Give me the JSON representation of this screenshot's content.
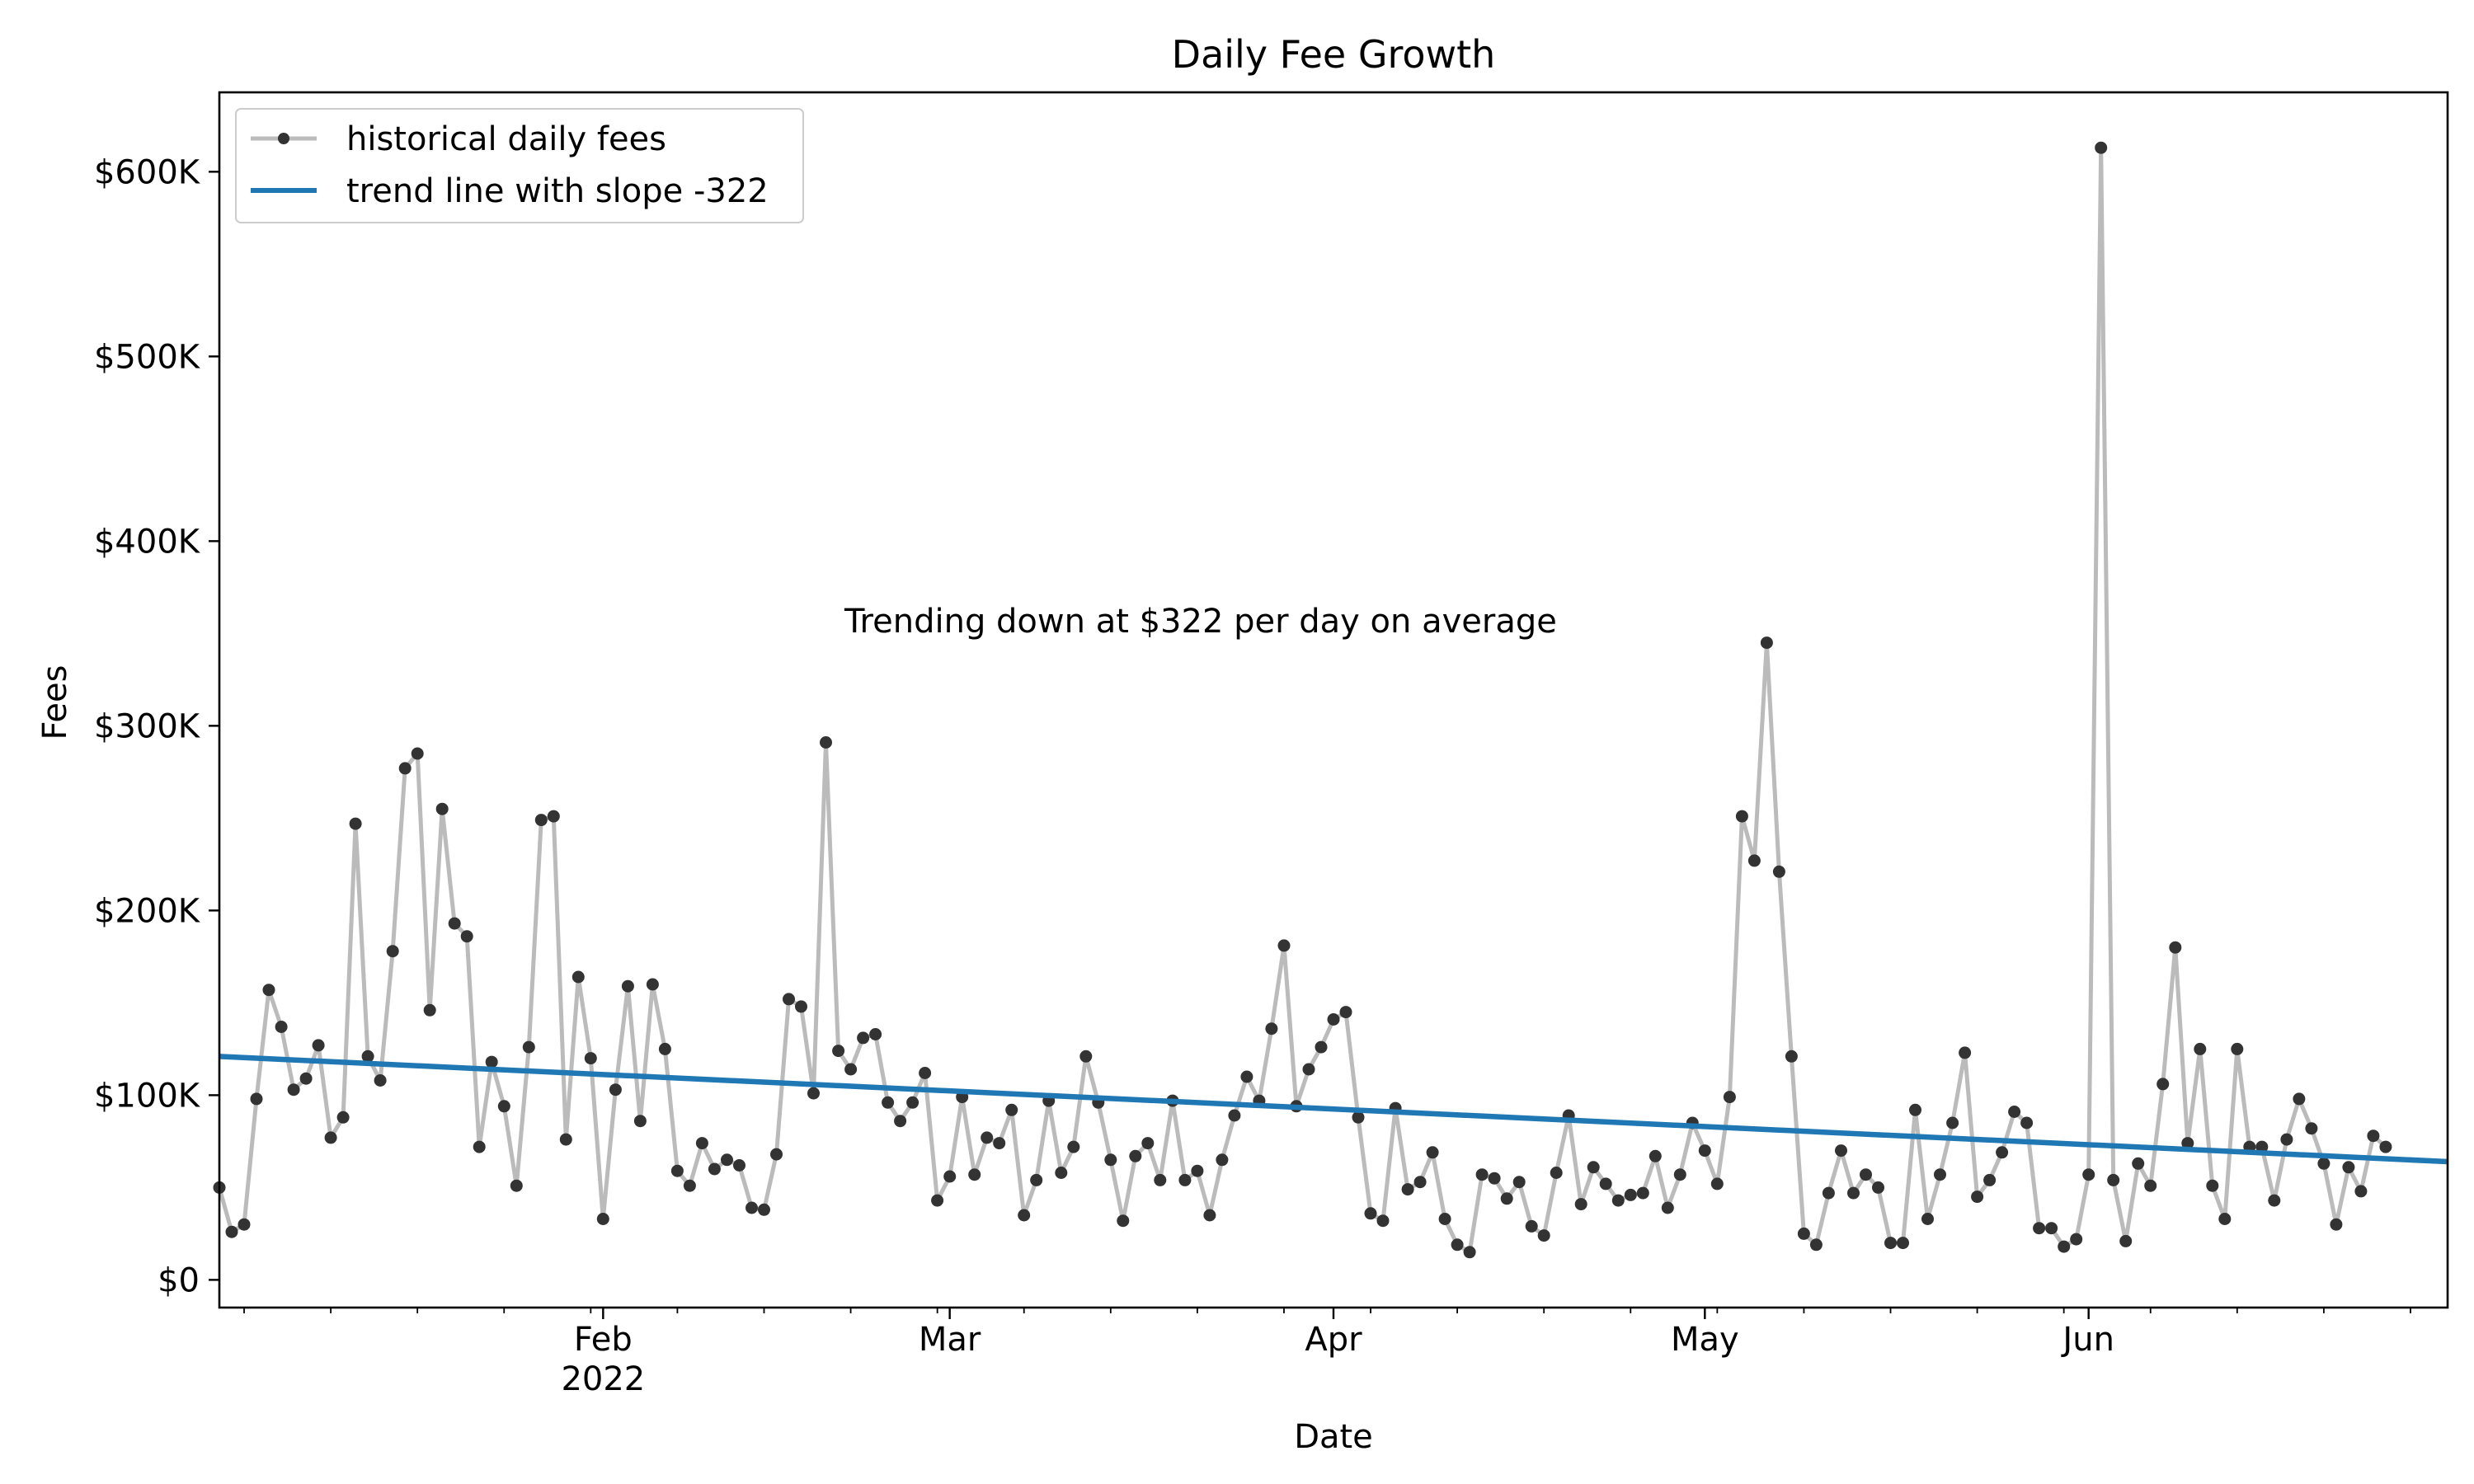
{
  "chart_data": {
    "type": "line",
    "title": "Daily Fee Growth",
    "xlabel": "Date",
    "ylabel": "Fees",
    "annotation": "Trending down at $322 per day on average",
    "x_start": "2022-01-01",
    "x_end": "2022-06-30",
    "xlim": [
      "2022-01-01",
      "2022-06-30"
    ],
    "ylim": [
      -15000,
      643000
    ],
    "y_ticks": [
      {
        "value": 0,
        "label": "$0"
      },
      {
        "value": 100000,
        "label": "$100K"
      },
      {
        "value": 200000,
        "label": "$200K"
      },
      {
        "value": 300000,
        "label": "$300K"
      },
      {
        "value": 400000,
        "label": "$400K"
      },
      {
        "value": 500000,
        "label": "$500K"
      },
      {
        "value": 600000,
        "label": "$600K"
      }
    ],
    "x_ticks": [
      {
        "date": "2022-02-01",
        "label": "Feb",
        "sublabel": "2022"
      },
      {
        "date": "2022-03-01",
        "label": "Mar",
        "sublabel": ""
      },
      {
        "date": "2022-04-01",
        "label": "Apr",
        "sublabel": ""
      },
      {
        "date": "2022-05-01",
        "label": "May",
        "sublabel": ""
      },
      {
        "date": "2022-06-01",
        "label": "Jun",
        "sublabel": ""
      }
    ],
    "legend": {
      "placement": "top-left",
      "entries": [
        {
          "label": "historical daily fees",
          "style": "line-marker",
          "color": "#bbbbbb",
          "marker_color": "#333333"
        },
        {
          "label": "trend line with slope -322",
          "style": "line",
          "color": "#1f77b4"
        }
      ]
    },
    "grid": false,
    "series": [
      {
        "name": "historical daily fees",
        "color": "#bbbbbb",
        "marker_color": "#333333",
        "values": [
          50000,
          26000,
          30000,
          98000,
          157000,
          137000,
          103000,
          109000,
          127000,
          77000,
          88000,
          247000,
          121000,
          108000,
          178000,
          277000,
          285000,
          146000,
          255000,
          193000,
          186000,
          72000,
          118000,
          94000,
          51000,
          126000,
          249000,
          251000,
          76000,
          164000,
          120000,
          33000,
          103000,
          159000,
          86000,
          160000,
          125000,
          59000,
          51000,
          74000,
          60000,
          65000,
          62000,
          39000,
          38000,
          68000,
          152000,
          148000,
          101000,
          291000,
          124000,
          114000,
          131000,
          133000,
          96000,
          86000,
          96000,
          112000,
          43000,
          56000,
          99000,
          57000,
          77000,
          74000,
          92000,
          35000,
          54000,
          97000,
          58000,
          72000,
          121000,
          96000,
          65000,
          32000,
          67000,
          74000,
          54000,
          97000,
          54000,
          59000,
          35000,
          65000,
          89000,
          110000,
          97000,
          136000,
          181000,
          94000,
          114000,
          126000,
          141000,
          145000,
          88000,
          36000,
          32000,
          93000,
          49000,
          53000,
          69000,
          33000,
          19000,
          15000,
          57000,
          55000,
          44000,
          53000,
          29000,
          24000,
          58000,
          89000,
          41000,
          61000,
          52000,
          43000,
          46000,
          47000,
          67000,
          39000,
          57000,
          85000,
          70000,
          52000,
          99000,
          251000,
          227000,
          345000,
          221000,
          121000,
          25000,
          19000,
          47000,
          70000,
          47000,
          57000,
          50000,
          20000,
          20000,
          92000,
          33000,
          57000,
          85000,
          123000,
          45000,
          54000,
          69000,
          91000,
          85000,
          28000,
          28000,
          18000,
          22000,
          57000,
          613000,
          54000,
          21000,
          63000,
          51000,
          106000,
          180000,
          74000,
          125000,
          51000,
          33000,
          125000,
          72000,
          72000,
          43000,
          76000,
          98000,
          82000,
          63000,
          30000,
          61000,
          48000,
          78000,
          72000
        ]
      },
      {
        "name": "trend line with slope -322",
        "color": "#1f77b4",
        "type": "trend",
        "slope": -322,
        "start_value": 121000,
        "end_value": 64000
      }
    ]
  }
}
